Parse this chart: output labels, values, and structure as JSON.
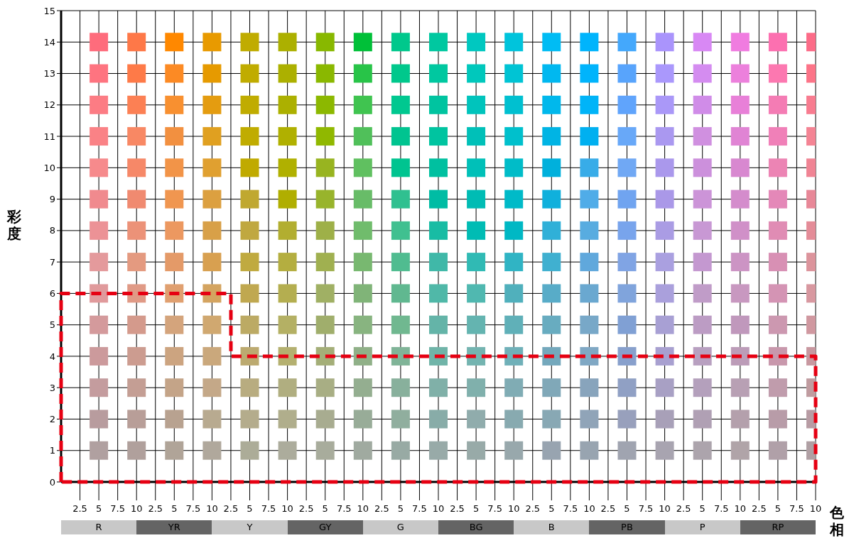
{
  "chart_data": {
    "type": "scatter",
    "xlabel": "色相",
    "ylabel": "彩度",
    "marker": "square",
    "grid": true,
    "categories": [
      "2.5",
      "5",
      "7.5",
      "10",
      "2.5",
      "5",
      "7.5",
      "10",
      "2.5",
      "5",
      "7.5",
      "10",
      "2.5",
      "5",
      "7.5",
      "10",
      "2.5",
      "5",
      "7.5",
      "10",
      "2.5",
      "5",
      "7.5",
      "10",
      "2.5",
      "5",
      "7.5",
      "10",
      "2.5",
      "5",
      "7.5",
      "10",
      "2.5",
      "5",
      "7.5",
      "10",
      "2.5",
      "5",
      "7.5",
      "10"
    ],
    "annotations": [
      "R",
      "YR",
      "Y",
      "GY",
      "G",
      "BG",
      "B",
      "PB",
      "P",
      "RP"
    ],
    "ylim": [
      0,
      15
    ],
    "yticks": [
      0,
      1,
      2,
      3,
      4,
      5,
      6,
      7,
      8,
      9,
      10,
      11,
      12,
      13,
      14,
      15
    ],
    "series": [
      {
        "values": [
          null,
          1,
          null,
          1,
          null,
          1,
          null,
          1,
          null,
          1,
          null,
          1,
          null,
          1,
          null,
          1,
          null,
          1,
          null,
          1,
          null,
          1,
          null,
          1,
          null,
          1,
          null,
          1,
          null,
          1,
          null,
          1,
          null,
          1,
          null,
          1,
          null,
          1,
          null,
          1
        ],
        "colors": [
          null,
          "#b0a0a0",
          null,
          "#b0a09c",
          null,
          "#b0a498",
          null,
          "#b0a89c",
          null,
          "#acac98",
          null,
          "#acac9c",
          null,
          "#a8ac9c",
          null,
          "#a0aaa0",
          null,
          "#98aaa4",
          null,
          "#98aaa8",
          null,
          "#98aaa8",
          null,
          "#98a8ac",
          null,
          "#98a4b0",
          null,
          "#98a4b0",
          null,
          "#a0a4b0",
          null,
          "#a8a4b0",
          null,
          "#aca4ac",
          null,
          "#b0a4a8",
          null,
          "#b0a0a8",
          null,
          "#b0a0a4"
        ]
      },
      {
        "values": [
          null,
          2,
          null,
          2,
          null,
          2,
          null,
          2,
          null,
          2,
          null,
          2,
          null,
          2,
          null,
          2,
          null,
          2,
          null,
          2,
          null,
          2,
          null,
          2,
          null,
          2,
          null,
          2,
          null,
          2,
          null,
          2,
          null,
          2,
          null,
          2,
          null,
          2,
          null,
          2
        ],
        "colors": [
          null,
          "#b89c9e",
          null,
          "#b89e98",
          null,
          "#b8a290",
          null,
          "#b8aa90",
          null,
          "#b4ac8c",
          null,
          "#b0ae8c",
          null,
          "#a8ac90",
          null,
          "#98ac98",
          null,
          "#90ae9e",
          null,
          "#88aca8",
          null,
          "#90acac",
          null,
          "#88aab0",
          null,
          "#88a8b4",
          null,
          "#90a4b8",
          null,
          "#98a0bc",
          null,
          "#a8a0b8",
          null,
          "#b0a0b4",
          null,
          "#b4a0ac",
          null,
          "#b89ca8",
          null,
          "#b89ca4"
        ]
      },
      {
        "values": [
          null,
          3,
          null,
          3,
          null,
          3,
          null,
          3,
          null,
          3,
          null,
          3,
          null,
          3,
          null,
          3,
          null,
          3,
          null,
          3,
          null,
          3,
          null,
          3,
          null,
          3,
          null,
          3,
          null,
          3,
          null,
          3,
          null,
          3,
          null,
          3,
          null,
          3,
          null,
          3
        ],
        "colors": [
          null,
          "#c49c9e",
          null,
          "#c49e94",
          null,
          "#c4a488",
          null,
          "#c4a888",
          null,
          "#b8ac80",
          null,
          "#b0ae80",
          null,
          "#a8ae84",
          null,
          "#94ae90",
          null,
          "#88b09c",
          null,
          "#80b0a8",
          null,
          "#80b0ac",
          null,
          "#80acb4",
          null,
          "#80a8b8",
          null,
          "#88a4bc",
          null,
          "#90a0c4",
          null,
          "#a8a0c4",
          null,
          "#b4a0bc",
          null,
          "#b8a0b4",
          null,
          "#c09cac",
          null,
          "#c09ca0"
        ]
      },
      {
        "values": [
          null,
          4,
          null,
          4,
          null,
          4,
          null,
          4,
          null,
          4,
          null,
          4,
          null,
          4,
          null,
          4,
          null,
          4,
          null,
          4,
          null,
          4,
          null,
          4,
          null,
          4,
          null,
          4,
          null,
          4,
          null,
          4,
          null,
          4,
          null,
          4,
          null,
          4,
          null,
          4
        ],
        "colors": [
          null,
          "#cc9a9c",
          null,
          "#cc9c90",
          null,
          "#cca480",
          null,
          "#caa87c",
          null,
          "#bcaa70",
          null,
          "#b4b070",
          null,
          "#a4ae78",
          null,
          "#90b088",
          null,
          "#80b498",
          null,
          "#70b4a8",
          null,
          "#74b4b0",
          null,
          "#70b0b8",
          null,
          "#74a8bc",
          null,
          "#80a8c4",
          null,
          "#88a0cc",
          null,
          "#a8a0d0",
          null,
          "#b8a0c0",
          null,
          "#bc9cb8",
          null,
          "#c898ac",
          null,
          "#c898a0"
        ]
      },
      {
        "values": [
          null,
          5,
          null,
          5,
          null,
          5,
          null,
          5,
          null,
          5,
          null,
          5,
          null,
          5,
          null,
          5,
          null,
          5,
          null,
          5,
          null,
          5,
          null,
          5,
          null,
          5,
          null,
          5,
          null,
          5,
          null,
          5,
          null,
          5,
          null,
          5,
          null,
          5,
          null,
          5
        ],
        "colors": [
          null,
          "#d49a9c",
          null,
          "#d49a8c",
          null,
          "#d4a47c",
          null,
          "#d0a870",
          null,
          "#bcaa64",
          null,
          "#b4b064",
          null,
          "#a0ae6c",
          null,
          "#88b480",
          null,
          "#70b890",
          null,
          "#64b4a8",
          null,
          "#64b4b0",
          null,
          "#60b0b8",
          null,
          "#68acc0",
          null,
          "#78a8c8",
          null,
          "#80a0d4",
          null,
          "#a8a0d4",
          null,
          "#bc9cc4",
          null,
          "#c098bc",
          null,
          "#cc98b0",
          null,
          "#d098a0"
        ]
      },
      {
        "values": [
          null,
          6,
          null,
          6,
          null,
          6,
          null,
          6,
          null,
          6,
          null,
          6,
          null,
          6,
          null,
          6,
          null,
          6,
          null,
          6,
          null,
          6,
          null,
          6,
          null,
          6,
          null,
          6,
          null,
          6,
          null,
          6,
          null,
          6,
          null,
          6,
          null,
          6,
          null,
          6
        ],
        "colors": [
          null,
          "#e09a9c",
          null,
          "#e09a86",
          null,
          "#e0a070",
          null,
          "#d4a460",
          null,
          "#c0a850",
          null,
          "#b4ae50",
          null,
          "#a0b064",
          null,
          "#80b478",
          null,
          "#60b890",
          null,
          "#50b8a8",
          null,
          "#50b8b0",
          null,
          "#50b0bc",
          null,
          "#58acc8",
          null,
          "#6aa8d0",
          null,
          "#80a4dc",
          null,
          "#aaa0dc",
          null,
          "#c09cc8",
          null,
          "#c898c0",
          null,
          "#d494b4",
          null,
          "#d898a0"
        ]
      },
      {
        "values": [
          null,
          7,
          null,
          7,
          null,
          7,
          null,
          7,
          null,
          7,
          null,
          7,
          null,
          7,
          null,
          7,
          null,
          7,
          null,
          7,
          null,
          7,
          null,
          7,
          null,
          7,
          null,
          7,
          null,
          7,
          null,
          7,
          null,
          7,
          null,
          7,
          null,
          7,
          null,
          7
        ],
        "colors": [
          null,
          "#e49a9c",
          null,
          "#e49a80",
          null,
          "#e49a68",
          null,
          "#d8a050",
          null,
          "#c0aa40",
          null,
          "#b4ae40",
          null,
          "#a0b050",
          null,
          "#78b870",
          null,
          "#50bc90",
          null,
          "#40b8a8",
          null,
          "#30bab4",
          null,
          "#30b4c4",
          null,
          "#40b0d0",
          null,
          "#60a8dc",
          null,
          "#80a4e4",
          null,
          "#aaa0e0",
          null,
          "#c498d0",
          null,
          "#cc94c4",
          null,
          "#d890b4",
          null,
          "#dc949c"
        ]
      },
      {
        "values": [
          null,
          8,
          null,
          8,
          null,
          8,
          null,
          8,
          null,
          8,
          null,
          8,
          null,
          8,
          null,
          8,
          null,
          8,
          null,
          8,
          null,
          8,
          null,
          8,
          null,
          8,
          null,
          8,
          null,
          8,
          null,
          8,
          null,
          8,
          null,
          8,
          null,
          8,
          null,
          8
        ],
        "colors": [
          null,
          "#ec9296",
          null,
          "#ec9278",
          null,
          "#ec9860",
          null,
          "#d8a048",
          null,
          "#c0a840",
          null,
          "#b2ae30",
          null,
          "#9eb048",
          null,
          "#70bc6c",
          null,
          "#40c090",
          null,
          "#18bca4",
          null,
          "#00bcb4",
          null,
          "#00b8c4",
          null,
          "#30b0d8",
          null,
          "#58ace0",
          null,
          "#78a4ec",
          null,
          "#aa9ce4",
          null,
          "#c898d4",
          null,
          "#d090c8",
          null,
          "#e08cb4",
          null,
          "#e48c98"
        ]
      },
      {
        "values": [
          null,
          9,
          null,
          9,
          null,
          9,
          null,
          9,
          null,
          9,
          null,
          9,
          null,
          9,
          null,
          9,
          null,
          9,
          null,
          9,
          null,
          9,
          null,
          9,
          null,
          9,
          null,
          9,
          null,
          9,
          null,
          9,
          null,
          9,
          null,
          9,
          null,
          9,
          null,
          9
        ],
        "colors": [
          null,
          "#f08a8e",
          null,
          "#f08a70",
          null,
          "#f09650",
          null,
          "#dca040",
          null,
          "#c0a830",
          null,
          "#b0ae00",
          null,
          "#98b42c",
          null,
          "#68bc68",
          null,
          "#30c090",
          null,
          "#00bca4",
          null,
          "#00bcb4",
          null,
          "#00bac8",
          null,
          "#10b0dc",
          null,
          "#50ace8",
          null,
          "#70a4f0",
          null,
          "#aa98e8",
          null,
          "#cc94d8",
          null,
          "#d48ccc",
          null,
          "#e488b8",
          null,
          "#e88898"
        ]
      },
      {
        "values": [
          null,
          10,
          null,
          10,
          null,
          10,
          null,
          10,
          null,
          10,
          null,
          10,
          null,
          10,
          null,
          10,
          null,
          10,
          null,
          10,
          null,
          10,
          null,
          10,
          null,
          10,
          null,
          10,
          null,
          10,
          null,
          10,
          null,
          10,
          null,
          10,
          null,
          10,
          null,
          10
        ],
        "colors": [
          null,
          "#f68a8c",
          null,
          "#f68868",
          null,
          "#f29448",
          null,
          "#e0a030",
          null,
          "#c0aa00",
          null,
          "#b0b000",
          null,
          "#98b420",
          null,
          "#60c060",
          null,
          "#00c490",
          null,
          "#00c0a0",
          null,
          "#00c0b8",
          null,
          "#00bcc8",
          null,
          "#00b0dc",
          null,
          "#38ace8",
          null,
          "#70a8f4",
          null,
          "#aa98ec",
          null,
          "#cc90dc",
          null,
          "#d888d0",
          null,
          "#ec84b4",
          null,
          "#f08494"
        ]
      },
      {
        "values": [
          null,
          11,
          null,
          11,
          null,
          11,
          null,
          11,
          null,
          11,
          null,
          11,
          null,
          11,
          null,
          11,
          null,
          11,
          null,
          11,
          null,
          11,
          null,
          11,
          null,
          11,
          null,
          11,
          null,
          11,
          null,
          11,
          null,
          11,
          null,
          11,
          null,
          11,
          null,
          11
        ],
        "colors": [
          null,
          "#fa8286",
          null,
          "#f88864",
          null,
          "#f29040",
          null,
          "#e0a020",
          null,
          "#c0ac00",
          null,
          "#b0b000",
          null,
          "#90b800",
          null,
          "#50c05a",
          null,
          "#00c490",
          null,
          "#00c4a0",
          null,
          "#00c0b8",
          null,
          "#00c0cc",
          null,
          "#00b4e4",
          null,
          "#00b0f0",
          null,
          "#68a8f8",
          null,
          "#aa98f0",
          null,
          "#d090e0",
          null,
          "#e084d4",
          null,
          "#f080b8",
          null,
          "#f48494"
        ]
      },
      {
        "values": [
          null,
          12,
          null,
          12,
          null,
          12,
          null,
          12,
          null,
          12,
          null,
          12,
          null,
          12,
          null,
          12,
          null,
          12,
          null,
          12,
          null,
          12,
          null,
          12,
          null,
          12,
          null,
          12,
          null,
          12,
          null,
          12,
          null,
          12,
          null,
          12,
          null,
          12,
          null,
          12
        ],
        "colors": [
          null,
          "#fc7c84",
          null,
          "#fc8054",
          null,
          "#f89030",
          null,
          "#e49c10",
          null,
          "#c0ac00",
          null,
          "#acb000",
          null,
          "#8cb800",
          null,
          "#40c450",
          null,
          "#00c890",
          null,
          "#00c4a0",
          null,
          "#00c4bc",
          null,
          "#00c0d0",
          null,
          "#00b8ec",
          null,
          "#00b4f8",
          null,
          "#60a4fc",
          null,
          "#aa98f8",
          null,
          "#d08ce8",
          null,
          "#e880d8",
          null,
          "#f47cb4",
          null,
          "#f87c90"
        ]
      },
      {
        "values": [
          null,
          13,
          null,
          13,
          null,
          13,
          null,
          13,
          null,
          13,
          null,
          13,
          null,
          13,
          null,
          13,
          null,
          13,
          null,
          13,
          null,
          13,
          null,
          13,
          null,
          13,
          null,
          13,
          null,
          13,
          null,
          13,
          null,
          13,
          null,
          13,
          null,
          13,
          null,
          13
        ],
        "colors": [
          null,
          "#fe7480",
          null,
          "#fe7a48",
          null,
          "#fc8a24",
          null,
          "#e69a00",
          null,
          "#c0ac00",
          null,
          "#acb000",
          null,
          "#8ab800",
          null,
          "#28c448",
          null,
          "#00c88c",
          null,
          "#00c8a0",
          null,
          "#00c8bc",
          null,
          "#00c4d4",
          null,
          "#00b8f0",
          null,
          "#00b4fc",
          null,
          "#58a4fc",
          null,
          "#aa98fc",
          null,
          "#d48cf0",
          null,
          "#ec80dc",
          null,
          "#fc78b0",
          null,
          "#fc7488"
        ]
      },
      {
        "values": [
          null,
          14,
          null,
          14,
          null,
          14,
          null,
          14,
          null,
          14,
          null,
          14,
          null,
          14,
          null,
          14,
          null,
          14,
          null,
          14,
          null,
          14,
          null,
          14,
          null,
          14,
          null,
          14,
          null,
          14,
          null,
          14,
          null,
          14,
          null,
          14,
          null,
          14,
          null,
          14
        ],
        "colors": [
          null,
          "#fe6c7c",
          null,
          "#fe7848",
          null,
          "#ff8800",
          null,
          "#e89a00",
          null,
          "#c0ac00",
          null,
          "#acb000",
          null,
          "#88b800",
          null,
          "#00c038",
          null,
          "#00c88c",
          null,
          "#00c8a0",
          null,
          "#00c8c0",
          null,
          "#00c4dc",
          null,
          "#00bcf4",
          null,
          "#00b4fc",
          null,
          "#44a8fc",
          null,
          "#aa94fc",
          null,
          "#d888f4",
          null,
          "#f07ce0",
          null,
          "#fc70b0",
          null,
          "#fc6c88"
        ]
      }
    ]
  }
}
